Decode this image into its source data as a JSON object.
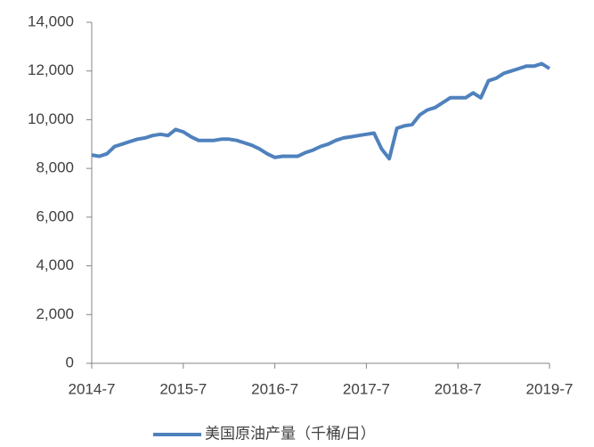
{
  "chart_data": {
    "type": "line",
    "categories": [
      "2014-7",
      null,
      null,
      null,
      null,
      null,
      null,
      null,
      null,
      null,
      null,
      null,
      "2015-7",
      null,
      null,
      null,
      null,
      null,
      null,
      null,
      null,
      null,
      null,
      null,
      "2016-7",
      null,
      null,
      null,
      null,
      null,
      null,
      null,
      null,
      null,
      null,
      null,
      "2017-7",
      null,
      null,
      null,
      null,
      null,
      null,
      null,
      null,
      null,
      null,
      null,
      "2018-7",
      null,
      null,
      null,
      null,
      null,
      null,
      null,
      null,
      null,
      null,
      null,
      "2019-7"
    ],
    "series": [
      {
        "name": "美国原油产量（千桶/日）",
        "color": "#4f81bd",
        "values": [
          8550,
          8500,
          8600,
          8900,
          9000,
          9100,
          9200,
          9250,
          9350,
          9400,
          9350,
          9600,
          9500,
          9300,
          9150,
          9150,
          9150,
          9200,
          9200,
          9150,
          9050,
          8950,
          8800,
          8600,
          8450,
          8500,
          8500,
          8500,
          8650,
          8750,
          8900,
          9000,
          9150,
          9250,
          9300,
          9350,
          9400,
          9450,
          8800,
          8400,
          9650,
          9750,
          9800,
          10200,
          10400,
          10500,
          10700,
          10900,
          10900,
          10900,
          11100,
          10900,
          11600,
          11700,
          11900,
          12000,
          12100,
          12200,
          12200,
          12300,
          12100
        ]
      }
    ],
    "ylim": [
      0,
      14000
    ],
    "yticks": [
      0,
      {
        "value": 2000,
        "label": "2,000"
      },
      {
        "value": 4000,
        "label": "4,000"
      },
      {
        "value": 6000,
        "label": "6,000"
      },
      {
        "value": 8000,
        "label": "8,000"
      },
      {
        "value": 10000,
        "label": "10,000"
      },
      {
        "value": 12000,
        "label": "12,000"
      },
      {
        "value": 14000,
        "label": "14,000"
      }
    ],
    "legend": "bottom"
  }
}
